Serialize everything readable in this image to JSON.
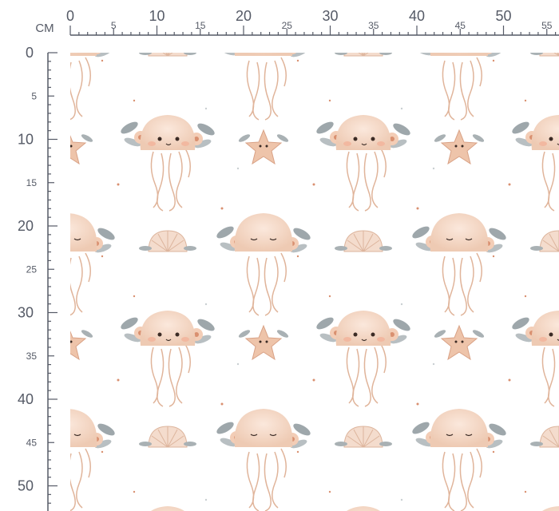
{
  "ruler": {
    "unit": "CM",
    "x_labels": [
      0,
      5,
      10,
      15,
      20,
      25,
      30,
      35,
      40,
      45,
      50,
      55
    ],
    "y_labels": [
      0,
      5,
      10,
      15,
      20,
      25,
      30,
      35,
      40,
      45,
      50
    ]
  }
}
